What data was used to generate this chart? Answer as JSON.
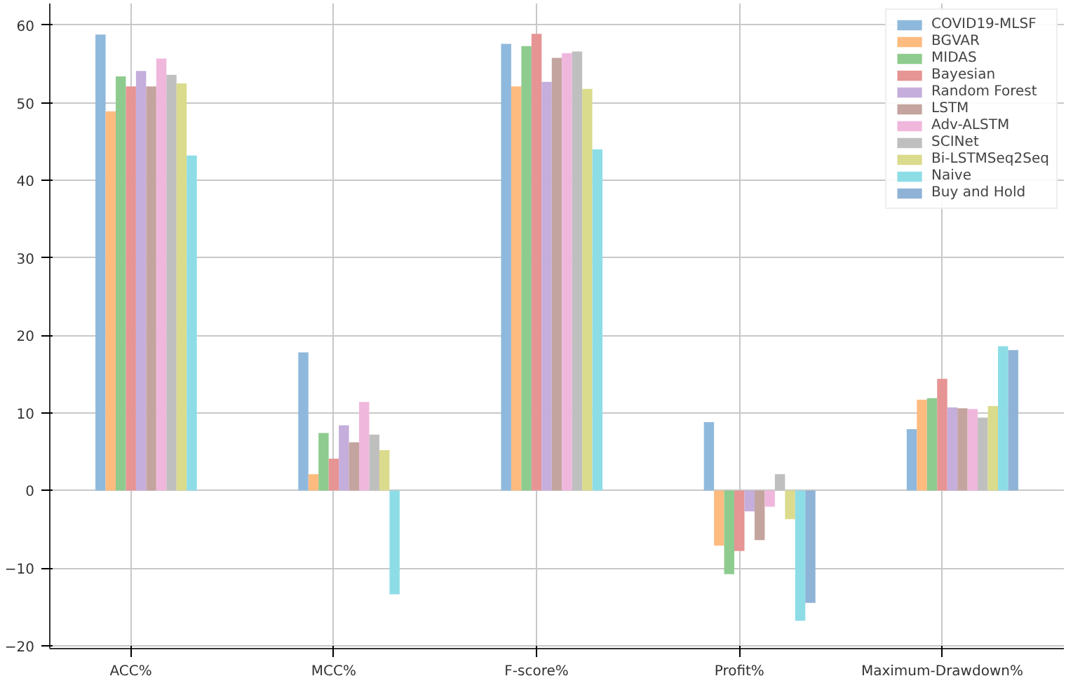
{
  "chart_data": {
    "type": "bar",
    "categories": [
      "ACC%",
      "MCC%",
      "F-score%",
      "Profit%",
      "Maximum-Drawdown%"
    ],
    "series": [
      {
        "name": "COVID19-MLSF",
        "color": "#8fb9dc",
        "values": [
          58.8,
          17.8,
          57.6,
          8.8,
          7.9
        ]
      },
      {
        "name": "BGVAR",
        "color": "#fdbb80",
        "values": [
          48.9,
          2.1,
          52.1,
          -7.1,
          11.7
        ]
      },
      {
        "name": "MIDAS",
        "color": "#8ecb8e",
        "values": [
          53.4,
          7.4,
          57.3,
          -10.8,
          11.9
        ]
      },
      {
        "name": "Bayesian",
        "color": "#e69494",
        "values": [
          52.1,
          4.1,
          58.9,
          -7.8,
          14.4
        ]
      },
      {
        "name": "Random Forest",
        "color": "#c5aedb",
        "values": [
          54.1,
          8.4,
          52.7,
          -2.7,
          10.7
        ]
      },
      {
        "name": "LSTM",
        "color": "#c4a49f",
        "values": [
          52.1,
          6.2,
          55.8,
          -6.4,
          10.6
        ]
      },
      {
        "name": "Adv-ALSTM",
        "color": "#f0b7dd",
        "values": [
          55.7,
          11.4,
          56.4,
          -2.1,
          10.5
        ]
      },
      {
        "name": "SCINet",
        "color": "#bfbfbf",
        "values": [
          53.6,
          7.2,
          56.6,
          2.1,
          9.4
        ]
      },
      {
        "name": "Bi-LSTMSeq2Seq",
        "color": "#dbdb8d",
        "values": [
          52.5,
          5.2,
          51.8,
          -3.7,
          10.9
        ]
      },
      {
        "name": "Naive",
        "color": "#8ddde7",
        "values": [
          43.2,
          -13.4,
          44.0,
          -16.8,
          18.6
        ]
      },
      {
        "name": "Buy and Hold",
        "color": "#8fb3d6",
        "values": [
          null,
          null,
          null,
          -14.5,
          18.1
        ]
      }
    ],
    "ylim": [
      -20.4,
      62.8
    ],
    "yticks": [
      -20,
      -10,
      0,
      10,
      20,
      30,
      40,
      50,
      60
    ],
    "grid": true,
    "legend": "top right"
  }
}
